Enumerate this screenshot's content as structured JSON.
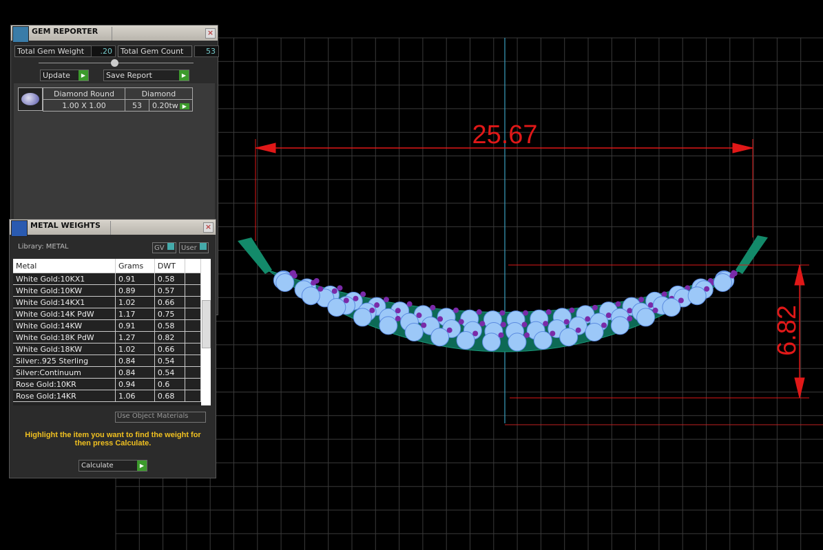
{
  "viewport": {
    "dimension_width": "25.67",
    "dimension_height": "6.82",
    "dimension_color": "#e01818"
  },
  "gem_reporter": {
    "title": "GEM REPORTER",
    "total_gem_weight_label": "Total Gem Weight",
    "total_gem_weight": ".20",
    "total_gem_count_label": "Total Gem Count",
    "total_gem_count": "53",
    "update_label": "Update",
    "save_report_label": "Save Report",
    "gem_row": {
      "shape": "Diamond Round",
      "type": "Diamond",
      "size": "1.00 X 1.00",
      "count": "53",
      "weight": "0.20tw"
    }
  },
  "metal_weights": {
    "title": "METAL WEIGHTS",
    "library_label": "Library: METAL",
    "gv_label": "GV",
    "user_label": "User",
    "columns": [
      "Metal",
      "Grams",
      "DWT"
    ],
    "rows": [
      [
        "White Gold:10KX1",
        "0.91",
        "0.58"
      ],
      [
        "White Gold:10KW",
        "0.89",
        "0.57"
      ],
      [
        "White Gold:14KX1",
        "1.02",
        "0.66"
      ],
      [
        "White Gold:14K PdW",
        "1.17",
        "0.75"
      ],
      [
        "White Gold:14KW",
        "0.91",
        "0.58"
      ],
      [
        "White Gold:18K PdW",
        "1.27",
        "0.82"
      ],
      [
        "White Gold:18KW",
        "1.02",
        "0.66"
      ],
      [
        "Silver:.925 Sterling",
        "0.84",
        "0.54"
      ],
      [
        "Silver:Continuum",
        "0.84",
        "0.54"
      ],
      [
        "Rose Gold:10KR",
        "0.94",
        "0.6"
      ],
      [
        "Rose Gold:14KR",
        "1.06",
        "0.68"
      ]
    ],
    "use_object_materials_label": "Use Object Materials",
    "hint": "Highlight the item you want to find the weight for then press Calculate.",
    "calculate_label": "Calculate"
  }
}
